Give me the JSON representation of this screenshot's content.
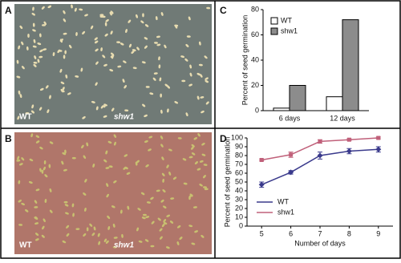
{
  "panel_labels": [
    "A",
    "B",
    "C",
    "D"
  ],
  "photo_labels": [
    [
      "WT",
      "shw1"
    ],
    [
      "WT",
      "shw1"
    ]
  ],
  "chart_data": [
    {
      "type": "bar",
      "ylabel": "Percent of seed germination",
      "categories": [
        "6 days",
        "12 days"
      ],
      "series": [
        {
          "name": "WT",
          "color": "#ffffff",
          "values": [
            2,
            11
          ]
        },
        {
          "name": "shw1",
          "color": "#8c8c8c",
          "values": [
            20,
            72
          ]
        }
      ],
      "ylim": [
        0,
        80
      ],
      "yticks": [
        0,
        20,
        40,
        60,
        80
      ],
      "legend": "top-left"
    },
    {
      "type": "line",
      "xlabel": "Number of days",
      "ylabel": "Percent of seed germination",
      "x": [
        5,
        6,
        7,
        8,
        9
      ],
      "series": [
        {
          "name": "WT",
          "color": "#3a3a8c",
          "marker": "diamond",
          "values": [
            47,
            61,
            80,
            85,
            87
          ],
          "errors": [
            3,
            2,
            4,
            3,
            3
          ]
        },
        {
          "name": "shw1",
          "color": "#c0607a",
          "marker": "square",
          "values": [
            75,
            81,
            96,
            98,
            100
          ],
          "errors": [
            1,
            3,
            2,
            1,
            1
          ]
        }
      ],
      "xlim": [
        4.5,
        9.5
      ],
      "xticks": [
        5,
        6,
        7,
        8,
        9
      ],
      "ylim": [
        0,
        100
      ],
      "yticks": [
        0,
        10,
        20,
        30,
        40,
        50,
        60,
        70,
        80,
        90,
        100
      ],
      "legend": "bottom-left"
    }
  ]
}
